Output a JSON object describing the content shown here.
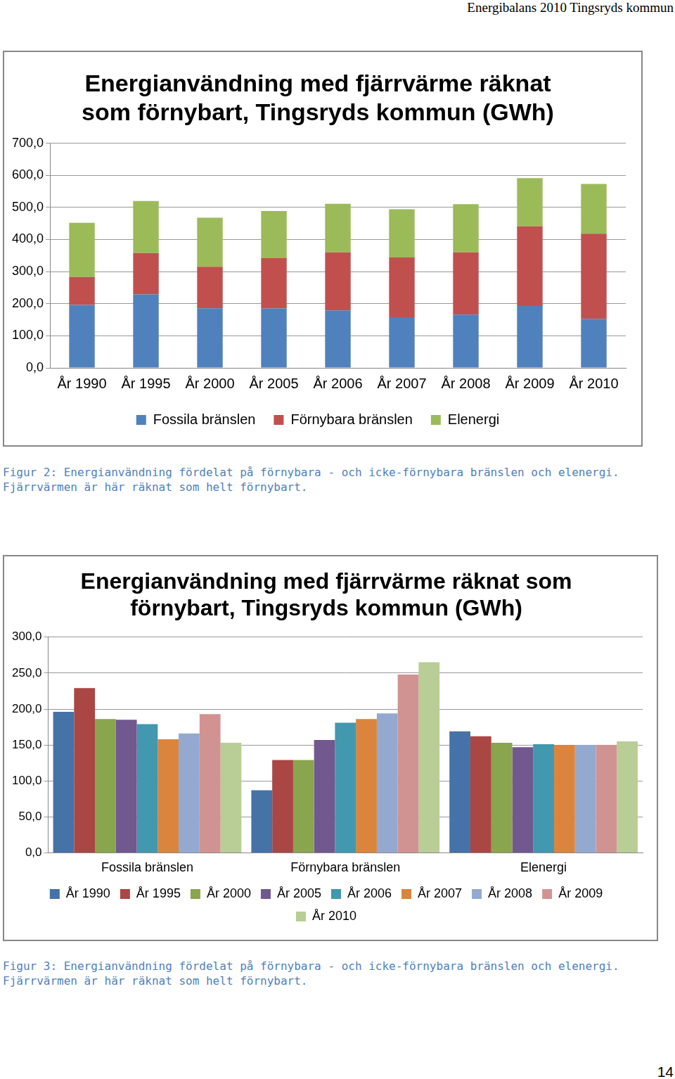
{
  "header": "Energibalans 2010 Tingsryds kommun",
  "chart_data": [
    {
      "type": "bar",
      "stacked": true,
      "title": [
        "Energianvändning med fjärrvärme räknat",
        "som förnybart, Tingsryds kommun (GWh)"
      ],
      "categories": [
        "År 1990",
        "År 1995",
        "År 2000",
        "År 2005",
        "År 2006",
        "År 2007",
        "År 2008",
        "År 2009",
        "År 2010"
      ],
      "series": [
        {
          "name": "Fossila bränslen",
          "color": "#4f81bd",
          "values": [
            196,
            229,
            186,
            185,
            179,
            158,
            166,
            193,
            153
          ]
        },
        {
          "name": "Förnybara bränslen",
          "color": "#c0504d",
          "values": [
            87,
            129,
            129,
            157,
            181,
            186,
            194,
            248,
            265
          ]
        },
        {
          "name": "Elenergi",
          "color": "#9bbb59",
          "values": [
            169,
            162,
            153,
            147,
            151,
            150,
            150,
            150,
            155
          ]
        }
      ],
      "ylim": [
        0,
        700
      ],
      "yticks": [
        {
          "value": 0,
          "label": "0,0"
        },
        {
          "value": 100,
          "label": "100,0"
        },
        {
          "value": 200,
          "label": "200,0"
        },
        {
          "value": 300,
          "label": "300,0"
        },
        {
          "value": 400,
          "label": "400,0"
        },
        {
          "value": 500,
          "label": "500,0"
        },
        {
          "value": 600,
          "label": "600,0"
        },
        {
          "value": 700,
          "label": "700,0"
        }
      ],
      "grid": true,
      "legend": "bottom"
    },
    {
      "type": "bar",
      "title": [
        "Energianvändning med fjärrvärme räknat som",
        "förnybart, Tingsryds kommun (GWh)"
      ],
      "categories": [
        "Fossila bränslen",
        "Förnybara bränslen",
        "Elenergi"
      ],
      "series": [
        {
          "name": "År 1990",
          "color": "#4572a7",
          "values": [
            196,
            87,
            169
          ]
        },
        {
          "name": "År 1995",
          "color": "#aa4643",
          "values": [
            229,
            129,
            162
          ]
        },
        {
          "name": "År 2000",
          "color": "#89a54e",
          "values": [
            186,
            129,
            153
          ]
        },
        {
          "name": "År 2005",
          "color": "#71588f",
          "values": [
            185,
            157,
            147
          ]
        },
        {
          "name": "År 2006",
          "color": "#4198af",
          "values": [
            179,
            181,
            151
          ]
        },
        {
          "name": "År 2007",
          "color": "#db843d",
          "values": [
            158,
            186,
            150
          ]
        },
        {
          "name": "År 2008",
          "color": "#93a9cf",
          "values": [
            166,
            194,
            150
          ]
        },
        {
          "name": "År 2009",
          "color": "#d19392",
          "values": [
            193,
            248,
            150
          ]
        },
        {
          "name": "År 2010",
          "color": "#b9cd96",
          "values": [
            153,
            265,
            155
          ]
        }
      ],
      "ylim": [
        0,
        300
      ],
      "yticks": [
        {
          "value": 0,
          "label": "0,0"
        },
        {
          "value": 50,
          "label": "50,0"
        },
        {
          "value": 100,
          "label": "100,0"
        },
        {
          "value": 150,
          "label": "150,0"
        },
        {
          "value": 200,
          "label": "200,0"
        },
        {
          "value": 250,
          "label": "250,0"
        },
        {
          "value": 300,
          "label": "300,0"
        }
      ],
      "grid": true,
      "legend": "bottom"
    }
  ],
  "captions": [
    "Figur 2: Energianvändning fördelat på förnybara - och icke-förnybara bränslen och elenergi. Fjärrvärmen är här räknat som helt förnybart.",
    "Figur 3: Energianvändning fördelat på förnybara - och icke-förnybara bränslen och elenergi. Fjärrvärmen är här räknat som helt förnybart."
  ],
  "page_number": "14"
}
